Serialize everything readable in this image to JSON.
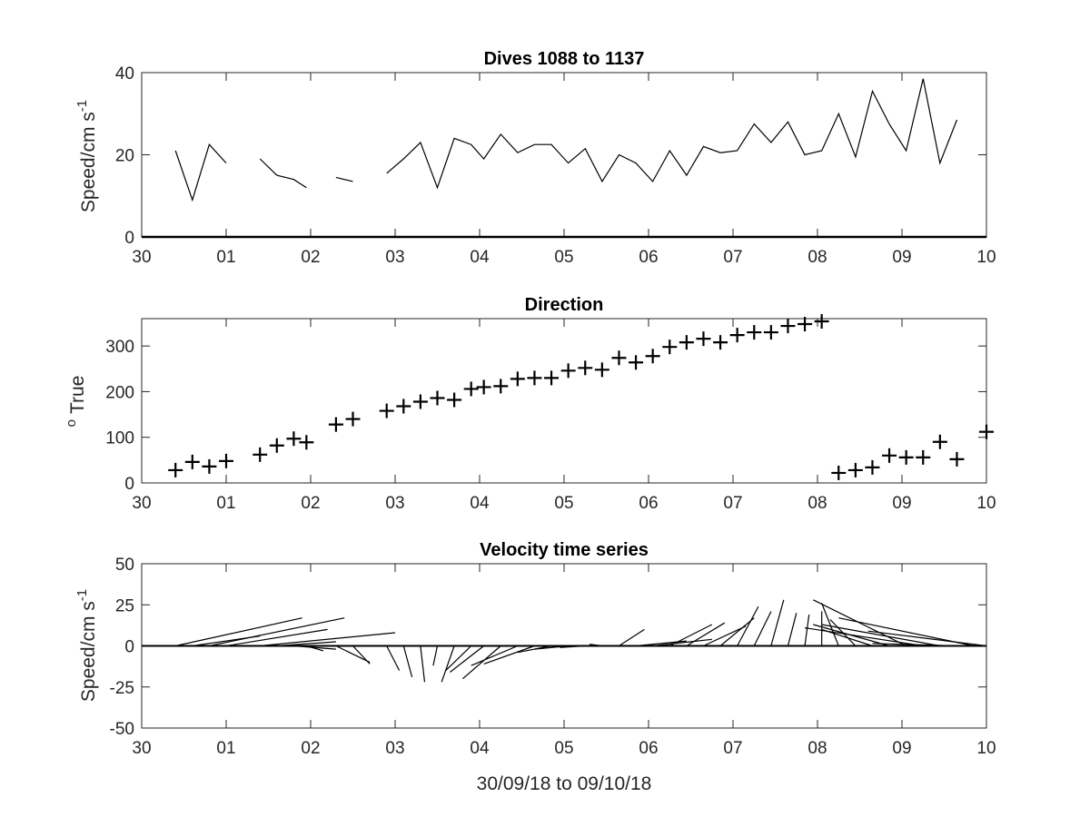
{
  "chart_data": [
    {
      "type": "line",
      "title": "Dives 1088 to 1137",
      "xlabel": "",
      "ylabel": "Speed/cm s",
      "ylabel_superscript": "-1",
      "xlim": [
        0,
        10
      ],
      "ylim": [
        0,
        40
      ],
      "xticks": [
        0,
        1,
        2,
        3,
        4,
        5,
        6,
        7,
        8,
        9,
        10
      ],
      "xtick_labels": [
        "30",
        "01",
        "02",
        "03",
        "04",
        "05",
        "06",
        "07",
        "08",
        "09",
        "10"
      ],
      "yticks": [
        0,
        20,
        40
      ],
      "ytick_labels": [
        "0",
        "20",
        "40"
      ],
      "series": [
        {
          "x": [
            0.4,
            0.6,
            0.8,
            1.0,
            null,
            1.4,
            1.6,
            1.8,
            1.95,
            null,
            2.3,
            2.5,
            null,
            2.9,
            3.1,
            3.3,
            3.5,
            3.7,
            3.9,
            4.05,
            4.25,
            4.45,
            4.65,
            4.85,
            5.05,
            5.25,
            5.45,
            5.65,
            5.85,
            6.05,
            6.25,
            6.45,
            6.65,
            6.85,
            7.05,
            7.25,
            7.45,
            7.65,
            7.85,
            8.05,
            8.25,
            8.45,
            8.65,
            8.85,
            9.05,
            9.25,
            9.45,
            9.65
          ],
          "y": [
            21,
            9,
            22.5,
            18,
            null,
            19,
            15,
            14,
            12,
            null,
            14.5,
            13.5,
            null,
            15.5,
            19,
            23,
            12,
            24,
            22.5,
            19,
            25,
            20.5,
            22.5,
            22.5,
            18,
            21.5,
            13.5,
            20,
            18,
            13.5,
            21,
            15,
            22,
            20.5,
            21,
            27.5,
            23,
            28,
            20,
            21,
            30,
            19.5,
            35.5,
            27.5,
            21,
            38.5,
            18,
            28.5
          ]
        }
      ],
      "baseline": 0
    },
    {
      "type": "scatter",
      "title": "Direction",
      "xlabel": "",
      "ylabel": "True",
      "ylabel_superscript": "o",
      "xlim": [
        0,
        10
      ],
      "ylim": [
        0,
        360
      ],
      "xticks": [
        0,
        1,
        2,
        3,
        4,
        5,
        6,
        7,
        8,
        9,
        10
      ],
      "xtick_labels": [
        "30",
        "01",
        "02",
        "03",
        "04",
        "05",
        "06",
        "07",
        "08",
        "09",
        "10"
      ],
      "yticks": [
        0,
        100,
        200,
        300
      ],
      "ytick_labels": [
        "0",
        "100",
        "200",
        "300"
      ],
      "marker": "+",
      "series": [
        {
          "x": [
            0.4,
            0.6,
            0.8,
            1.0,
            1.4,
            1.6,
            1.8,
            1.95,
            2.3,
            2.5,
            2.9,
            3.1,
            3.3,
            3.5,
            3.7,
            3.9,
            4.05,
            4.25,
            4.45,
            4.65,
            4.85,
            5.05,
            5.25,
            5.45,
            5.65,
            5.85,
            6.05,
            6.25,
            6.45,
            6.65,
            6.85,
            7.05,
            7.25,
            7.45,
            7.65,
            7.85,
            8.05,
            8.25,
            8.45,
            8.65,
            8.85,
            9.05,
            9.25,
            9.45,
            9.65,
            10.0
          ],
          "y": [
            28,
            46,
            36,
            48,
            62,
            82,
            97,
            89,
            128,
            140,
            158,
            168,
            178,
            186,
            182,
            206,
            210,
            212,
            228,
            230,
            230,
            246,
            252,
            248,
            274,
            264,
            278,
            298,
            308,
            316,
            308,
            324,
            330,
            330,
            344,
            348,
            354,
            22,
            28,
            34,
            60,
            56,
            56,
            90,
            52,
            112
          ]
        }
      ]
    },
    {
      "type": "quiver",
      "title": "Velocity time series",
      "xlabel": "30/09/18 to 09/10/18",
      "ylabel": "Speed/cm s",
      "ylabel_superscript": "-1",
      "xlim": [
        0,
        10
      ],
      "ylim": [
        -50,
        50
      ],
      "xticks": [
        0,
        1,
        2,
        3,
        4,
        5,
        6,
        7,
        8,
        9,
        10
      ],
      "xtick_labels": [
        "30",
        "01",
        "02",
        "03",
        "04",
        "05",
        "06",
        "07",
        "08",
        "09",
        "10"
      ],
      "yticks": [
        -50,
        -25,
        0,
        25,
        50
      ],
      "ytick_labels": [
        "-50",
        "-25",
        "0",
        "25",
        "50"
      ],
      "vectors": [
        {
          "x": 0.4,
          "u": 1.5,
          "v": 17
        },
        {
          "x": 0.6,
          "u": 0.8,
          "v": 6
        },
        {
          "x": 0.8,
          "u": 1.6,
          "v": 17
        },
        {
          "x": 1.0,
          "u": 1.2,
          "v": 10
        },
        {
          "x": 1.4,
          "u": 1.6,
          "v": 8
        },
        {
          "x": 1.6,
          "u": 0.7,
          "v": 2.5
        },
        {
          "x": 1.8,
          "u": 0.5,
          "v": -2
        },
        {
          "x": 1.95,
          "u": 0.2,
          "v": -3
        },
        {
          "x": 2.3,
          "u": 0.4,
          "v": -10
        },
        {
          "x": 2.5,
          "u": 0.2,
          "v": -11
        },
        {
          "x": 2.9,
          "u": 0.15,
          "v": -15
        },
        {
          "x": 3.1,
          "u": 0.1,
          "v": -19
        },
        {
          "x": 3.3,
          "u": 0.05,
          "v": -22
        },
        {
          "x": 3.5,
          "u": -0.05,
          "v": -12
        },
        {
          "x": 3.7,
          "u": -0.15,
          "v": -22
        },
        {
          "x": 3.9,
          "u": -0.3,
          "v": -15
        },
        {
          "x": 4.05,
          "u": -0.4,
          "v": -16
        },
        {
          "x": 4.25,
          "u": -0.45,
          "v": -20
        },
        {
          "x": 4.45,
          "u": -0.55,
          "v": -12
        },
        {
          "x": 4.65,
          "u": -0.6,
          "v": -11
        },
        {
          "x": 4.85,
          "u": -0.4,
          "v": -4
        },
        {
          "x": 5.05,
          "u": -0.4,
          "v": -2
        },
        {
          "x": 5.25,
          "u": -0.3,
          "v": -1
        },
        {
          "x": 5.45,
          "u": -0.15,
          "v": 1
        },
        {
          "x": 5.65,
          "u": 0.3,
          "v": 10
        },
        {
          "x": 5.85,
          "u": 0.6,
          "v": 3
        },
        {
          "x": 6.05,
          "u": 0.7,
          "v": 4
        },
        {
          "x": 6.25,
          "u": 0.5,
          "v": 13
        },
        {
          "x": 6.45,
          "u": 0.45,
          "v": 14
        },
        {
          "x": 6.65,
          "u": 0.5,
          "v": 12
        },
        {
          "x": 6.85,
          "u": 0.4,
          "v": 17
        },
        {
          "x": 7.05,
          "u": 0.25,
          "v": 24
        },
        {
          "x": 7.25,
          "u": 0.2,
          "v": 21
        },
        {
          "x": 7.45,
          "u": 0.15,
          "v": 28
        },
        {
          "x": 7.65,
          "u": 0.1,
          "v": 20
        },
        {
          "x": 7.85,
          "u": 0.05,
          "v": 19
        },
        {
          "x": 8.05,
          "u": 0.0,
          "v": 21
        },
        {
          "x": 8.25,
          "u": -0.2,
          "v": 26
        },
        {
          "x": 8.45,
          "u": -0.3,
          "v": 16
        },
        {
          "x": 8.65,
          "u": -0.6,
          "v": 10
        },
        {
          "x": 8.85,
          "u": -0.9,
          "v": 13
        },
        {
          "x": 9.05,
          "u": -1.1,
          "v": 28
        },
        {
          "x": 9.25,
          "u": -1.4,
          "v": 11
        },
        {
          "x": 9.45,
          "u": -1.4,
          "v": 13
        },
        {
          "x": 9.65,
          "u": -1.0,
          "v": 1.5
        },
        {
          "x": 9.85,
          "u": -1.6,
          "v": 17
        },
        {
          "x": 10.0,
          "u": -1.4,
          "v": 9
        }
      ]
    }
  ]
}
